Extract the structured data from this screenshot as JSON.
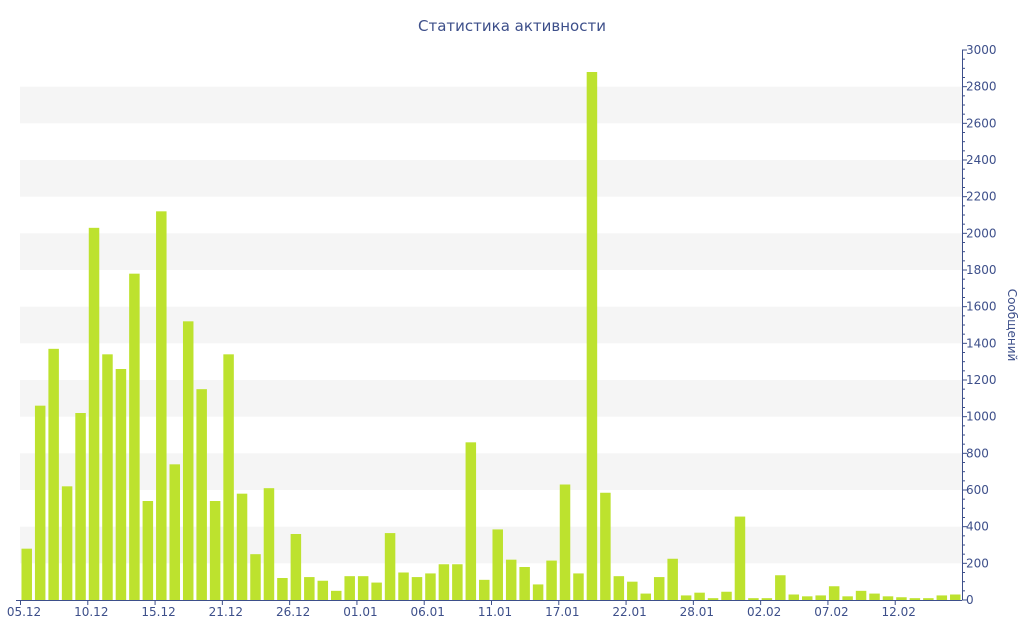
{
  "chart_data": {
    "type": "bar",
    "title": "Статистика активности",
    "ylabel": "Сообщений",
    "xlabel": "",
    "ylim": [
      0,
      3000
    ],
    "y_ticks": [
      0,
      200,
      400,
      600,
      800,
      1000,
      1200,
      1400,
      1600,
      1800,
      2000,
      2200,
      2400,
      2600,
      2800,
      3000
    ],
    "y_axis_side": "right",
    "grid": "alternating horizontal bands",
    "bar_color": "#bde22e",
    "axis_color": "#3d4f8a",
    "band_color": "#f5f5f5",
    "x_tick_labels": [
      {
        "index": 0,
        "label": "05.12"
      },
      {
        "index": 5,
        "label": "10.12"
      },
      {
        "index": 10,
        "label": "15.12"
      },
      {
        "index": 15,
        "label": "21.12"
      },
      {
        "index": 20,
        "label": "26.12"
      },
      {
        "index": 25,
        "label": "01.01"
      },
      {
        "index": 30,
        "label": "06.01"
      },
      {
        "index": 35,
        "label": "11.01"
      },
      {
        "index": 40,
        "label": "17.01"
      },
      {
        "index": 45,
        "label": "22.01"
      },
      {
        "index": 50,
        "label": "28.01"
      },
      {
        "index": 55,
        "label": "02.02"
      },
      {
        "index": 60,
        "label": "07.02"
      },
      {
        "index": 65,
        "label": "12.02"
      }
    ],
    "values": [
      280,
      1060,
      1370,
      620,
      1020,
      2030,
      1340,
      1260,
      1780,
      540,
      2120,
      740,
      1520,
      1150,
      540,
      1340,
      580,
      250,
      610,
      120,
      360,
      125,
      105,
      50,
      130,
      130,
      95,
      365,
      150,
      125,
      145,
      195,
      195,
      860,
      110,
      385,
      220,
      180,
      85,
      215,
      630,
      145,
      2880,
      585,
      130,
      100,
      35,
      125,
      225,
      25,
      40,
      10,
      45,
      455,
      10,
      10,
      135,
      30,
      20,
      25,
      75,
      20,
      50,
      35,
      20,
      15,
      10,
      10,
      25,
      30
    ]
  }
}
